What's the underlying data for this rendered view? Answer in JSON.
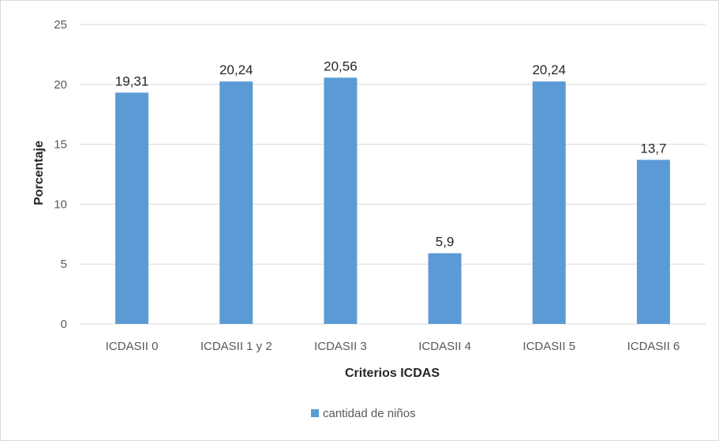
{
  "chart_data": {
    "type": "bar",
    "categories": [
      "ICDASII 0",
      "ICDASII 1 y 2",
      "ICDASII 3",
      "ICDASII 4",
      "ICDASII 5",
      "ICDASII 6"
    ],
    "values": [
      19.31,
      20.24,
      20.56,
      5.9,
      20.24,
      13.7
    ],
    "data_labels": [
      "19,31",
      "20,24",
      "20,56",
      "5,9",
      "20,24",
      "13,7"
    ],
    "series": [
      {
        "name": "cantidad de niños",
        "values": [
          19.31,
          20.24,
          20.56,
          5.9,
          20.24,
          13.7
        ]
      }
    ],
    "xlabel": "Criterios ICDAS",
    "ylabel": "Porcentaje",
    "ylim": [
      0,
      25
    ],
    "yticks": [
      0,
      5,
      10,
      15,
      20,
      25
    ],
    "grid": true,
    "legend": "bottom",
    "bar_color": "#5b9bd5",
    "grid_color": "#d9d9d9"
  }
}
